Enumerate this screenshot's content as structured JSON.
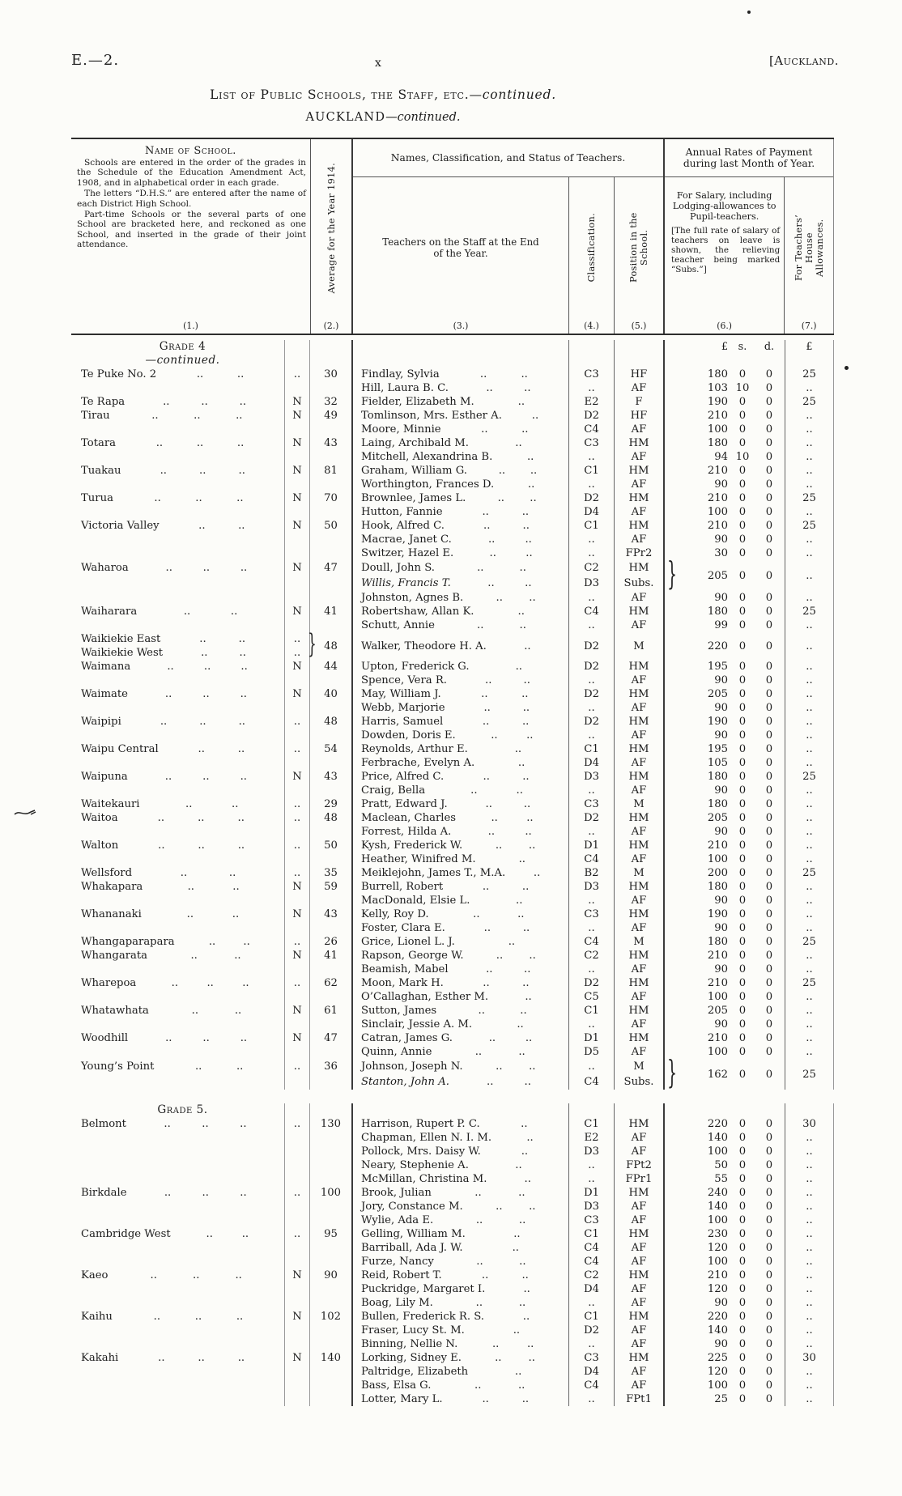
{
  "page": {
    "doc_ref": "E.—2.",
    "page_number": "x",
    "corner_tag": "[Auckland.",
    "title_main": "List of Public Schools, the Staff, etc.",
    "title_cont": "—continued.",
    "subtitle_main": "AUCKLAND",
    "subtitle_cont": "—continued."
  },
  "header": {
    "col1_title": "Name of School.",
    "col1_notes": [
      "Schools are entered in the order of the grades in the Schedule of the Education Amendment Act, 1908, and in alphabetical order in each grade.",
      "The letters “D.H.S.” are entered after the name of each District High School.",
      "Part-time Schools or the several parts of one School are bracketed here, and reckoned as one School, and inserted in the grade of their joint attendance."
    ],
    "col1_num": "(1.)",
    "col2_title": "Average for the Year 1914.",
    "col2_num": "(2.)",
    "group_teachers": "Names, Classification, and Status of Teachers.",
    "col3_title": "Teachers on the Staff at the End of the Year.",
    "col3_num": "(3.)",
    "col4_title": "Classification.",
    "col4_num": "(4.)",
    "col5_title": "Position in the School.",
    "col5_num": "(5.)",
    "group_payment": "Annual Rates of Payment during last Month of Year.",
    "col6_title": "For Salary, including Lodging-allowances to Pupil-teachers.",
    "col6_note": "[The full rate of salary of teachers on leave is shown, the relieving teacher being marked “Subs.”]",
    "col6_num": "(6.)",
    "col7_title": "For Teachers’ House Allowances.",
    "col7_num": "(7.)",
    "money_pounds": "£",
    "money_s": "s.",
    "money_d": "d.",
    "house_pounds": "£"
  },
  "rows": [
    {
      "type": "heading",
      "text": "Grade 4",
      "cont": "—continued.",
      "money": true
    },
    {
      "sc": "Te Puke No. 2",
      "fl": "..",
      "av": "30",
      "t": "Findlay, Sylvia",
      "cl": "C3",
      "po": "HF",
      "L": "180",
      "s": "0",
      "d": "0",
      "h": "25"
    },
    {
      "t": "Hill, Laura B. C.",
      "cl": "..",
      "po": "AF",
      "L": "103",
      "s": "10",
      "d": "0",
      "h": ".."
    },
    {
      "sc": "Te Rapa",
      "fl": "N",
      "av": "32",
      "t": "Fielder, Elizabeth M.",
      "cl": "E2",
      "po": "F",
      "L": "190",
      "s": "0",
      "d": "0",
      "h": "25"
    },
    {
      "sc": "Tirau",
      "fl": "N",
      "av": "49",
      "t": "Tomlinson, Mrs. Esther A.",
      "cl": "D2",
      "po": "HF",
      "L": "210",
      "s": "0",
      "d": "0",
      "h": ".."
    },
    {
      "t": "Moore, Minnie",
      "cl": "C4",
      "po": "AF",
      "L": "100",
      "s": "0",
      "d": "0",
      "h": ".."
    },
    {
      "sc": "Totara",
      "fl": "N",
      "av": "43",
      "t": "Laing, Archibald M.",
      "cl": "C3",
      "po": "HM",
      "L": "180",
      "s": "0",
      "d": "0",
      "h": ".."
    },
    {
      "t": "Mitchell, Alexandrina B.",
      "cl": "..",
      "po": "AF",
      "L": "94",
      "s": "10",
      "d": "0",
      "h": ".."
    },
    {
      "sc": "Tuakau",
      "fl": "N",
      "av": "81",
      "t": "Graham, William G.",
      "cl": "C1",
      "po": "HM",
      "L": "210",
      "s": "0",
      "d": "0",
      "h": ".."
    },
    {
      "t": "Worthington, Frances D.",
      "cl": "..",
      "po": "AF",
      "L": "90",
      "s": "0",
      "d": "0",
      "h": ".."
    },
    {
      "sc": "Turua",
      "fl": "N",
      "av": "70",
      "t": "Brownlee, James L.",
      "cl": "D2",
      "po": "HM",
      "L": "210",
      "s": "0",
      "d": "0",
      "h": "25"
    },
    {
      "t": "Hutton, Fannie",
      "cl": "D4",
      "po": "AF",
      "L": "100",
      "s": "0",
      "d": "0",
      "h": ".."
    },
    {
      "sc": "Victoria Valley",
      "fl": "N",
      "av": "50",
      "t": "Hook, Alfred C.",
      "cl": "C1",
      "po": "HM",
      "L": "210",
      "s": "0",
      "d": "0",
      "h": "25"
    },
    {
      "t": "Macrae, Janet C.",
      "cl": "..",
      "po": "AF",
      "L": "90",
      "s": "0",
      "d": "0",
      "h": ".."
    },
    {
      "t": "Switzer, Hazel E.",
      "cl": "..",
      "po": "FPr2",
      "L": "30",
      "s": "0",
      "d": "0",
      "h": ".."
    },
    {
      "type": "pair",
      "sc": "Waharoa",
      "fl": "N",
      "av": "47",
      "bracket": "}",
      "lines": [
        {
          "t": "Doull, John S.",
          "cl": "C2",
          "po": "HM"
        },
        {
          "t": "Willis, Francis T.",
          "italic": true,
          "cl": "D3",
          "po": "Subs."
        }
      ],
      "L": "205",
      "s": "0",
      "d": "0",
      "h": ".."
    },
    {
      "t": "Johnston, Agnes B.",
      "cl": "..",
      "po": "AF",
      "L": "90",
      "s": "0",
      "d": "0",
      "h": ".."
    },
    {
      "sc": "Waiharara",
      "fl": "N",
      "av": "41",
      "t": "Robertshaw, Allan K.",
      "cl": "C4",
      "po": "HM",
      "L": "180",
      "s": "0",
      "d": "0",
      "h": "25"
    },
    {
      "t": "Schutt, Annie",
      "cl": "..",
      "po": "AF",
      "L": "99",
      "s": "0",
      "d": "0",
      "h": ".."
    },
    {
      "type": "schoolpair",
      "bracket": "}",
      "schools": [
        {
          "sc": "Waikiekie East",
          "fl": ".."
        },
        {
          "sc": "Waikiekie West",
          "fl": ".."
        }
      ],
      "av": "48",
      "t": "Walker, Theodore H. A.",
      "cl": "D2",
      "po": "M",
      "L": "220",
      "s": "0",
      "d": "0",
      "h": ".."
    },
    {
      "sc": "Waimana",
      "fl": "N",
      "av": "44",
      "t": "Upton, Frederick G.",
      "cl": "D2",
      "po": "HM",
      "L": "195",
      "s": "0",
      "d": "0",
      "h": ".."
    },
    {
      "t": "Spence, Vera R.",
      "cl": "..",
      "po": "AF",
      "L": "90",
      "s": "0",
      "d": "0",
      "h": ".."
    },
    {
      "sc": "Waimate",
      "fl": "N",
      "av": "40",
      "t": "May, William J.",
      "cl": "D2",
      "po": "HM",
      "L": "205",
      "s": "0",
      "d": "0",
      "h": ".."
    },
    {
      "t": "Webb, Marjorie",
      "cl": "..",
      "po": "AF",
      "L": "90",
      "s": "0",
      "d": "0",
      "h": ".."
    },
    {
      "sc": "Waipipi",
      "fl": "..",
      "av": "48",
      "t": "Harris, Samuel",
      "cl": "D2",
      "po": "HM",
      "L": "190",
      "s": "0",
      "d": "0",
      "h": ".."
    },
    {
      "t": "Dowden, Doris E.",
      "cl": "..",
      "po": "AF",
      "L": "90",
      "s": "0",
      "d": "0",
      "h": ".."
    },
    {
      "sc": "Waipu Central",
      "fl": "..",
      "av": "54",
      "t": "Reynolds, Arthur E.",
      "cl": "C1",
      "po": "HM",
      "L": "195",
      "s": "0",
      "d": "0",
      "h": ".."
    },
    {
      "t": "Ferbrache, Evelyn A.",
      "cl": "D4",
      "po": "AF",
      "L": "105",
      "s": "0",
      "d": "0",
      "h": ".."
    },
    {
      "sc": "Waipuna",
      "fl": "N",
      "av": "43",
      "t": "Price, Alfred C.",
      "cl": "D3",
      "po": "HM",
      "L": "180",
      "s": "0",
      "d": "0",
      "h": "25"
    },
    {
      "t": "Craig, Bella",
      "cl": "..",
      "po": "AF",
      "L": "90",
      "s": "0",
      "d": "0",
      "h": ".."
    },
    {
      "sc": "Waitekauri",
      "fl": "..",
      "av": "29",
      "t": "Pratt, Edward J.",
      "cl": "C3",
      "po": "M",
      "L": "180",
      "s": "0",
      "d": "0",
      "h": ".."
    },
    {
      "sc": "Waitoa",
      "fl": "..",
      "av": "48",
      "t": "Maclean, Charles",
      "cl": "D2",
      "po": "HM",
      "L": "205",
      "s": "0",
      "d": "0",
      "h": ".."
    },
    {
      "t": "Forrest, Hilda A.",
      "cl": "..",
      "po": "AF",
      "L": "90",
      "s": "0",
      "d": "0",
      "h": ".."
    },
    {
      "sc": "Walton",
      "fl": "..",
      "av": "50",
      "t": "Kysh, Frederick W.",
      "cl": "D1",
      "po": "HM",
      "L": "210",
      "s": "0",
      "d": "0",
      "h": ".."
    },
    {
      "t": "Heather, Winifred M.",
      "cl": "C4",
      "po": "AF",
      "L": "100",
      "s": "0",
      "d": "0",
      "h": ".."
    },
    {
      "sc": "Wellsford",
      "fl": "..",
      "av": "35",
      "t": "Meiklejohn, James T., M.A.",
      "cl": "B2",
      "po": "M",
      "L": "200",
      "s": "0",
      "d": "0",
      "h": "25"
    },
    {
      "sc": "Whakapara",
      "fl": "N",
      "av": "59",
      "t": "Burrell, Robert",
      "cl": "D3",
      "po": "HM",
      "L": "180",
      "s": "0",
      "d": "0",
      "h": ".."
    },
    {
      "t": "MacDonald, Elsie L.",
      "cl": "..",
      "po": "AF",
      "L": "90",
      "s": "0",
      "d": "0",
      "h": ".."
    },
    {
      "sc": "Whananaki",
      "fl": "N",
      "av": "43",
      "t": "Kelly, Roy D.",
      "cl": "C3",
      "po": "HM",
      "L": "190",
      "s": "0",
      "d": "0",
      "h": ".."
    },
    {
      "t": "Foster, Clara E.",
      "cl": "..",
      "po": "AF",
      "L": "90",
      "s": "0",
      "d": "0",
      "h": ".."
    },
    {
      "sc": "Whangaparapara",
      "fl": "..",
      "av": "26",
      "t": "Grice, Lionel L. J.",
      "cl": "C4",
      "po": "M",
      "L": "180",
      "s": "0",
      "d": "0",
      "h": "25"
    },
    {
      "sc": "Whangarata",
      "fl": "N",
      "av": "41",
      "t": "Rapson, George W.",
      "cl": "C2",
      "po": "HM",
      "L": "210",
      "s": "0",
      "d": "0",
      "h": ".."
    },
    {
      "t": "Beamish, Mabel",
      "cl": "..",
      "po": "AF",
      "L": "90",
      "s": "0",
      "d": "0",
      "h": ".."
    },
    {
      "sc": "Wharepoa",
      "fl": "..",
      "av": "62",
      "t": "Moon, Mark H.",
      "cl": "D2",
      "po": "HM",
      "L": "210",
      "s": "0",
      "d": "0",
      "h": "25"
    },
    {
      "t": "O’Callaghan, Esther M.",
      "cl": "C5",
      "po": "AF",
      "L": "100",
      "s": "0",
      "d": "0",
      "h": ".."
    },
    {
      "sc": "Whatawhata",
      "fl": "N",
      "av": "61",
      "t": "Sutton, James",
      "cl": "C1",
      "po": "HM",
      "L": "205",
      "s": "0",
      "d": "0",
      "h": ".."
    },
    {
      "t": "Sinclair, Jessie A. M.",
      "cl": "..",
      "po": "AF",
      "L": "90",
      "s": "0",
      "d": "0",
      "h": ".."
    },
    {
      "sc": "Woodhill",
      "fl": "N",
      "av": "47",
      "t": "Catran, James G.",
      "cl": "D1",
      "po": "HM",
      "L": "210",
      "s": "0",
      "d": "0",
      "h": ".."
    },
    {
      "t": "Quinn, Annie",
      "cl": "D5",
      "po": "AF",
      "L": "100",
      "s": "0",
      "d": "0",
      "h": ".."
    },
    {
      "type": "pair",
      "sc": "Young’s Point",
      "fl": "..",
      "av": "36",
      "bracket": "}",
      "lines": [
        {
          "t": "Johnson, Joseph N.",
          "cl": "..",
          "po": "M"
        },
        {
          "t": "Stanton, John A.",
          "italic": true,
          "cl": "C4",
          "po": "Subs."
        }
      ],
      "L": "162",
      "s": "0",
      "d": "0",
      "h": "25"
    },
    {
      "type": "gap"
    },
    {
      "type": "heading",
      "text": "Grade 5.",
      "cont": "",
      "money": false
    },
    {
      "sc": "Belmont",
      "fl": "..",
      "av": "130",
      "t": "Harrison, Rupert P. C.",
      "cl": "C1",
      "po": "HM",
      "L": "220",
      "s": "0",
      "d": "0",
      "h": "30"
    },
    {
      "t": "Chapman, Ellen N. I. M.",
      "cl": "E2",
      "po": "AF",
      "L": "140",
      "s": "0",
      "d": "0",
      "h": ".."
    },
    {
      "t": "Pollock, Mrs. Daisy W.",
      "cl": "D3",
      "po": "AF",
      "L": "100",
      "s": "0",
      "d": "0",
      "h": ".."
    },
    {
      "t": "Neary, Stephenie A.",
      "cl": "..",
      "po": "FPt2",
      "L": "50",
      "s": "0",
      "d": "0",
      "h": ".."
    },
    {
      "t": "McMillan, Christina M.",
      "cl": "..",
      "po": "FPr1",
      "L": "55",
      "s": "0",
      "d": "0",
      "h": ".."
    },
    {
      "sc": "Birkdale",
      "fl": "..",
      "av": "100",
      "t": "Brook, Julian",
      "cl": "D1",
      "po": "HM",
      "L": "240",
      "s": "0",
      "d": "0",
      "h": ".."
    },
    {
      "t": "Jory, Constance M.",
      "cl": "D3",
      "po": "AF",
      "L": "140",
      "s": "0",
      "d": "0",
      "h": ".."
    },
    {
      "t": "Wylie, Ada E.",
      "cl": "C3",
      "po": "AF",
      "L": "100",
      "s": "0",
      "d": "0",
      "h": ".."
    },
    {
      "sc": "Cambridge West",
      "fl": "..",
      "av": "95",
      "t": "Gelling, William M.",
      "cl": "C1",
      "po": "HM",
      "L": "230",
      "s": "0",
      "d": "0",
      "h": ".."
    },
    {
      "t": "Barriball, Ada J. W.",
      "cl": "C4",
      "po": "AF",
      "L": "120",
      "s": "0",
      "d": "0",
      "h": ".."
    },
    {
      "t": "Furze, Nancy",
      "cl": "C4",
      "po": "AF",
      "L": "100",
      "s": "0",
      "d": "0",
      "h": ".."
    },
    {
      "sc": "Kaeo",
      "fl": "N",
      "av": "90",
      "t": "Reid, Robert T.",
      "cl": "C2",
      "po": "HM",
      "L": "210",
      "s": "0",
      "d": "0",
      "h": ".."
    },
    {
      "t": "Puckridge, Margaret I.",
      "cl": "D4",
      "po": "AF",
      "L": "120",
      "s": "0",
      "d": "0",
      "h": ".."
    },
    {
      "t": "Boag, Lily M.",
      "cl": "..",
      "po": "AF",
      "L": "90",
      "s": "0",
      "d": "0",
      "h": ".."
    },
    {
      "sc": "Kaihu",
      "fl": "N",
      "av": "102",
      "t": "Bullen, Frederick R. S.",
      "cl": "C1",
      "po": "HM",
      "L": "220",
      "s": "0",
      "d": "0",
      "h": ".."
    },
    {
      "t": "Fraser, Lucy St. M.",
      "cl": "D2",
      "po": "AF",
      "L": "140",
      "s": "0",
      "d": "0",
      "h": ".."
    },
    {
      "t": "Binning, Nellie N.",
      "cl": "..",
      "po": "AF",
      "L": "90",
      "s": "0",
      "d": "0",
      "h": ".."
    },
    {
      "sc": "Kakahi",
      "fl": "N",
      "av": "140",
      "t": "Lorking, Sidney E.",
      "cl": "C3",
      "po": "HM",
      "L": "225",
      "s": "0",
      "d": "0",
      "h": "30"
    },
    {
      "t": "Paltridge, Elizabeth",
      "cl": "D4",
      "po": "AF",
      "L": "120",
      "s": "0",
      "d": "0",
      "h": ".."
    },
    {
      "t": "Bass, Elsa G.",
      "cl": "C4",
      "po": "AF",
      "L": "100",
      "s": "0",
      "d": "0",
      "h": ".."
    },
    {
      "t": "Lotter, Mary L.",
      "cl": "..",
      "po": "FPt1",
      "L": "25",
      "s": "0",
      "d": "0",
      "h": ".."
    }
  ]
}
